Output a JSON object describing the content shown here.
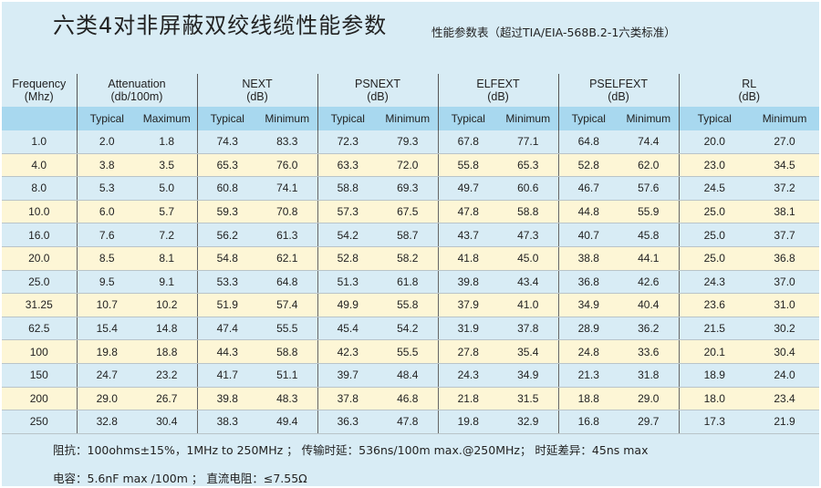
{
  "title": "六类4对非屏蔽双绞线缆性能参数",
  "subtitle": "性能参数表（超过TIA/EIA-568B.2-1六类标准）",
  "groups": [
    {
      "label": "Frequency",
      "unit": "(Mhz)"
    },
    {
      "label": "Attenuation",
      "unit": "(db/100m)"
    },
    {
      "label": "NEXT",
      "unit": "(dB)"
    },
    {
      "label": "PSNEXT",
      "unit": "(dB)"
    },
    {
      "label": "ELFEXT",
      "unit": "(dB)"
    },
    {
      "label": "PSELFEXT",
      "unit": "(dB)"
    },
    {
      "label": "RL",
      "unit": "(dB)"
    }
  ],
  "subheaders": [
    "",
    "Typical",
    "Maximum",
    "Typical",
    "Minimum",
    "Typical",
    "Minimum",
    "Typical",
    "Minimum",
    "Typical",
    "Minimum",
    "Typical",
    "Minimum"
  ],
  "rows": [
    [
      "1.0",
      "2.0",
      "1.8",
      "74.3",
      "83.3",
      "72.3",
      "79.3",
      "67.8",
      "77.1",
      "64.8",
      "74.4",
      "20.0",
      "27.0"
    ],
    [
      "4.0",
      "3.8",
      "3.5",
      "65.3",
      "76.0",
      "63.3",
      "72.0",
      "55.8",
      "65.3",
      "52.8",
      "62.0",
      "23.0",
      "34.5"
    ],
    [
      "8.0",
      "5.3",
      "5.0",
      "60.8",
      "74.1",
      "58.8",
      "69.3",
      "49.7",
      "60.6",
      "46.7",
      "57.6",
      "24.5",
      "37.2"
    ],
    [
      "10.0",
      "6.0",
      "5.7",
      "59.3",
      "70.8",
      "57.3",
      "67.5",
      "47.8",
      "58.8",
      "44.8",
      "55.9",
      "25.0",
      "38.1"
    ],
    [
      "16.0",
      "7.6",
      "7.2",
      "56.2",
      "61.3",
      "54.2",
      "58.7",
      "43.7",
      "47.3",
      "40.7",
      "45.8",
      "25.0",
      "37.7"
    ],
    [
      "20.0",
      "8.5",
      "8.1",
      "54.8",
      "62.1",
      "52.8",
      "58.2",
      "41.8",
      "45.0",
      "38.8",
      "44.1",
      "25.0",
      "36.8"
    ],
    [
      "25.0",
      "9.5",
      "9.1",
      "53.3",
      "64.8",
      "51.3",
      "61.8",
      "39.8",
      "43.4",
      "36.8",
      "42.6",
      "24.3",
      "37.0"
    ],
    [
      "31.25",
      "10.7",
      "10.2",
      "51.9",
      "57.4",
      "49.9",
      "55.8",
      "37.9",
      "41.0",
      "34.9",
      "40.4",
      "23.6",
      "31.0"
    ],
    [
      "62.5",
      "15.4",
      "14.8",
      "47.4",
      "55.5",
      "45.4",
      "54.2",
      "31.9",
      "37.8",
      "28.9",
      "36.2",
      "21.5",
      "30.2"
    ],
    [
      "100",
      "19.8",
      "18.8",
      "44.3",
      "58.8",
      "42.3",
      "55.5",
      "27.8",
      "35.4",
      "24.8",
      "33.6",
      "20.1",
      "30.4"
    ],
    [
      "150",
      "24.7",
      "23.2",
      "41.7",
      "51.1",
      "39.7",
      "48.4",
      "24.3",
      "34.9",
      "21.3",
      "31.8",
      "18.9",
      "24.0"
    ],
    [
      "200",
      "29.0",
      "26.7",
      "39.8",
      "48.3",
      "37.8",
      "46.8",
      "21.8",
      "31.5",
      "18.8",
      "29.0",
      "18.0",
      "23.4"
    ],
    [
      "250",
      "32.8",
      "30.4",
      "38.3",
      "49.4",
      "36.3",
      "47.8",
      "19.8",
      "32.9",
      "16.8",
      "29.7",
      "17.3",
      "21.9"
    ]
  ],
  "notes": {
    "line1": "阻抗：100ohms±15%，1MHz to 250MHz ； 传输时延：536ns/100m max.@250MHz； 时延差异：45ns max",
    "line2": "电容：5.6nF max /100m ；  直流电阻：≤7.55Ω"
  },
  "colors": {
    "background": "#d8ecf5",
    "subheader_band": "#a8d8ef",
    "alt_row": "#fdf6d6"
  }
}
